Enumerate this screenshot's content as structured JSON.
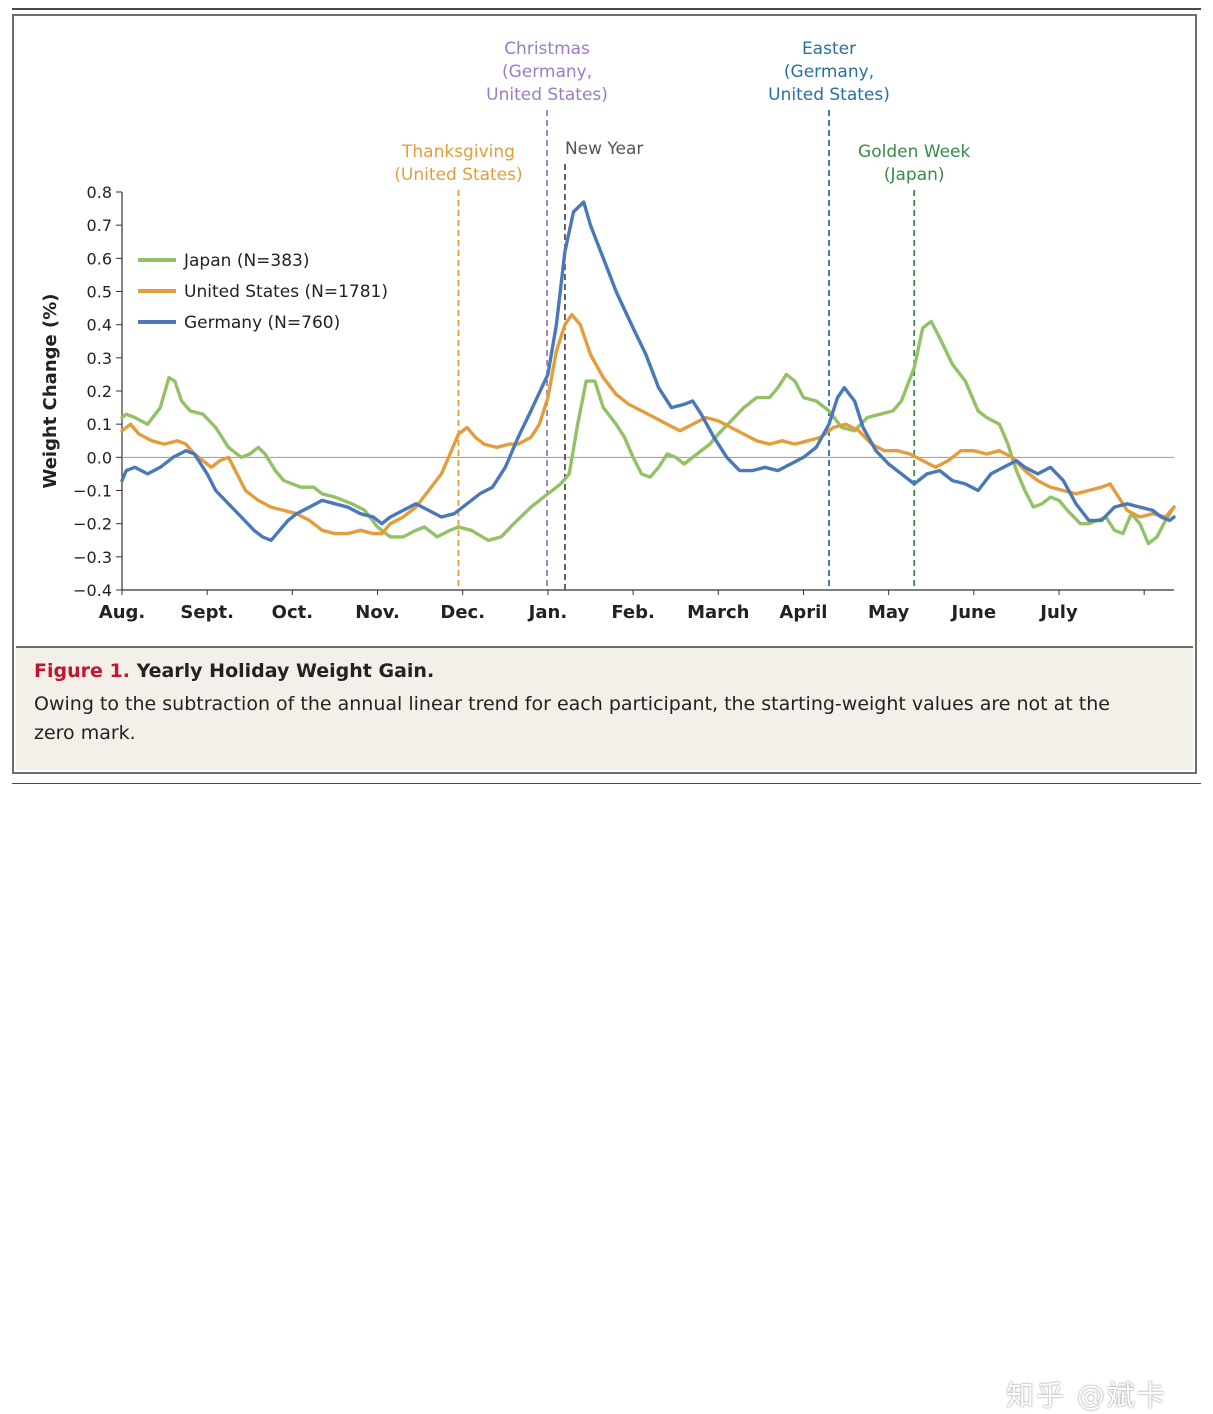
{
  "figure": {
    "label": "Figure 1.",
    "title": "Yearly Holiday Weight Gain.",
    "caption": "Owing to the subtraction of the annual linear trend for each participant, the starting-weight values are not at the zero mark."
  },
  "watermark": "知乎 @斌卡",
  "chart_data": {
    "type": "line",
    "title": "",
    "xlabel": "",
    "ylabel": "Weight Change (%)",
    "ylim": [
      -0.4,
      0.8
    ],
    "yticks": [
      "−0.4",
      "−0.3",
      "−0.2",
      "−0.1",
      "0.0",
      "0.1",
      "0.2",
      "0.3",
      "0.4",
      "0.5",
      "0.6",
      "0.7",
      "0.8"
    ],
    "xlim": [
      0,
      12
    ],
    "month_labels": [
      "Aug.",
      "Sept.",
      "Oct.",
      "Nov.",
      "Dec.",
      "Jan.",
      "Feb.",
      "March",
      "April",
      "May",
      "June",
      "July"
    ],
    "grid": false,
    "zero_line": true,
    "legend": "upper-left",
    "series": [
      {
        "name": "Japan (N=383)",
        "color": "#93c168",
        "points": [
          [
            0,
            0.12
          ],
          [
            0.05,
            0.13
          ],
          [
            0.15,
            0.12
          ],
          [
            0.3,
            0.1
          ],
          [
            0.45,
            0.15
          ],
          [
            0.55,
            0.24
          ],
          [
            0.62,
            0.23
          ],
          [
            0.7,
            0.17
          ],
          [
            0.8,
            0.14
          ],
          [
            0.95,
            0.13
          ],
          [
            1.1,
            0.09
          ],
          [
            1.25,
            0.03
          ],
          [
            1.4,
            0.0
          ],
          [
            1.5,
            0.01
          ],
          [
            1.6,
            0.03
          ],
          [
            1.68,
            0.01
          ],
          [
            1.8,
            -0.04
          ],
          [
            1.9,
            -0.07
          ],
          [
            2.0,
            -0.08
          ],
          [
            2.1,
            -0.09
          ],
          [
            2.25,
            -0.09
          ],
          [
            2.35,
            -0.11
          ],
          [
            2.5,
            -0.12
          ],
          [
            2.7,
            -0.14
          ],
          [
            2.85,
            -0.16
          ],
          [
            3.0,
            -0.21
          ],
          [
            3.15,
            -0.24
          ],
          [
            3.3,
            -0.24
          ],
          [
            3.45,
            -0.22
          ],
          [
            3.55,
            -0.21
          ],
          [
            3.7,
            -0.24
          ],
          [
            3.85,
            -0.22
          ],
          [
            3.95,
            -0.21
          ],
          [
            4.1,
            -0.22
          ],
          [
            4.3,
            -0.25
          ],
          [
            4.45,
            -0.24
          ],
          [
            4.6,
            -0.2
          ],
          [
            4.8,
            -0.15
          ],
          [
            5.0,
            -0.11
          ],
          [
            5.15,
            -0.08
          ],
          [
            5.25,
            -0.05
          ],
          [
            5.35,
            0.1
          ],
          [
            5.45,
            0.23
          ],
          [
            5.55,
            0.23
          ],
          [
            5.65,
            0.15
          ],
          [
            5.8,
            0.1
          ],
          [
            5.9,
            0.06
          ],
          [
            6.0,
            0.0
          ],
          [
            6.1,
            -0.05
          ],
          [
            6.2,
            -0.06
          ],
          [
            6.3,
            -0.03
          ],
          [
            6.4,
            0.01
          ],
          [
            6.5,
            0.0
          ],
          [
            6.6,
            -0.02
          ],
          [
            6.75,
            0.01
          ],
          [
            6.9,
            0.04
          ],
          [
            7.0,
            0.07
          ],
          [
            7.15,
            0.11
          ],
          [
            7.3,
            0.15
          ],
          [
            7.45,
            0.18
          ],
          [
            7.6,
            0.18
          ],
          [
            7.7,
            0.21
          ],
          [
            7.8,
            0.25
          ],
          [
            7.9,
            0.23
          ],
          [
            8.0,
            0.18
          ],
          [
            8.15,
            0.17
          ],
          [
            8.3,
            0.14
          ],
          [
            8.45,
            0.09
          ],
          [
            8.6,
            0.08
          ],
          [
            8.75,
            0.12
          ],
          [
            8.9,
            0.13
          ],
          [
            9.05,
            0.14
          ],
          [
            9.15,
            0.17
          ],
          [
            9.3,
            0.27
          ],
          [
            9.4,
            0.39
          ],
          [
            9.5,
            0.41
          ],
          [
            9.6,
            0.36
          ],
          [
            9.75,
            0.28
          ],
          [
            9.9,
            0.23
          ],
          [
            10.05,
            0.14
          ],
          [
            10.15,
            0.12
          ],
          [
            10.3,
            0.1
          ],
          [
            10.4,
            0.04
          ],
          [
            10.5,
            -0.04
          ],
          [
            10.6,
            -0.1
          ],
          [
            10.7,
            -0.15
          ],
          [
            10.8,
            -0.14
          ],
          [
            10.9,
            -0.12
          ],
          [
            11.0,
            -0.13
          ],
          [
            11.1,
            -0.16
          ],
          [
            11.25,
            -0.2
          ],
          [
            11.35,
            -0.2
          ],
          [
            11.45,
            -0.19
          ],
          [
            11.55,
            -0.18
          ],
          [
            11.65,
            -0.22
          ],
          [
            11.75,
            -0.23
          ],
          [
            11.85,
            -0.17
          ],
          [
            11.95,
            -0.2
          ],
          [
            12.05,
            -0.26
          ],
          [
            12.15,
            -0.24
          ],
          [
            12.25,
            -0.19
          ],
          [
            12.35,
            -0.15
          ]
        ]
      },
      {
        "name": "United States (N=1781)",
        "color": "#e39d3c",
        "points": [
          [
            0,
            0.08
          ],
          [
            0.1,
            0.1
          ],
          [
            0.2,
            0.07
          ],
          [
            0.35,
            0.05
          ],
          [
            0.5,
            0.04
          ],
          [
            0.65,
            0.05
          ],
          [
            0.75,
            0.04
          ],
          [
            0.85,
            0.01
          ],
          [
            1.0,
            -0.02
          ],
          [
            1.05,
            -0.03
          ],
          [
            1.15,
            -0.01
          ],
          [
            1.25,
            0.0
          ],
          [
            1.35,
            -0.05
          ],
          [
            1.45,
            -0.1
          ],
          [
            1.6,
            -0.13
          ],
          [
            1.75,
            -0.15
          ],
          [
            1.9,
            -0.16
          ],
          [
            2.05,
            -0.17
          ],
          [
            2.2,
            -0.19
          ],
          [
            2.35,
            -0.22
          ],
          [
            2.5,
            -0.23
          ],
          [
            2.65,
            -0.23
          ],
          [
            2.8,
            -0.22
          ],
          [
            2.95,
            -0.23
          ],
          [
            3.05,
            -0.23
          ],
          [
            3.15,
            -0.2
          ],
          [
            3.3,
            -0.18
          ],
          [
            3.45,
            -0.15
          ],
          [
            3.6,
            -0.1
          ],
          [
            3.75,
            -0.05
          ],
          [
            3.85,
            0.01
          ],
          [
            3.95,
            0.07
          ],
          [
            4.05,
            0.09
          ],
          [
            4.15,
            0.06
          ],
          [
            4.25,
            0.04
          ],
          [
            4.4,
            0.03
          ],
          [
            4.55,
            0.04
          ],
          [
            4.65,
            0.04
          ],
          [
            4.8,
            0.06
          ],
          [
            4.9,
            0.1
          ],
          [
            5.0,
            0.18
          ],
          [
            5.1,
            0.32
          ],
          [
            5.2,
            0.4
          ],
          [
            5.28,
            0.43
          ],
          [
            5.38,
            0.4
          ],
          [
            5.5,
            0.31
          ],
          [
            5.65,
            0.24
          ],
          [
            5.8,
            0.19
          ],
          [
            5.95,
            0.16
          ],
          [
            6.1,
            0.14
          ],
          [
            6.25,
            0.12
          ],
          [
            6.4,
            0.1
          ],
          [
            6.55,
            0.08
          ],
          [
            6.7,
            0.1
          ],
          [
            6.85,
            0.12
          ],
          [
            7.0,
            0.11
          ],
          [
            7.15,
            0.09
          ],
          [
            7.3,
            0.07
          ],
          [
            7.45,
            0.05
          ],
          [
            7.6,
            0.04
          ],
          [
            7.75,
            0.05
          ],
          [
            7.9,
            0.04
          ],
          [
            8.05,
            0.05
          ],
          [
            8.2,
            0.06
          ],
          [
            8.35,
            0.09
          ],
          [
            8.5,
            0.1
          ],
          [
            8.65,
            0.08
          ],
          [
            8.8,
            0.04
          ],
          [
            8.95,
            0.02
          ],
          [
            9.1,
            0.02
          ],
          [
            9.25,
            0.01
          ],
          [
            9.4,
            -0.01
          ],
          [
            9.55,
            -0.03
          ],
          [
            9.7,
            -0.01
          ],
          [
            9.85,
            0.02
          ],
          [
            10.0,
            0.02
          ],
          [
            10.15,
            0.01
          ],
          [
            10.3,
            0.02
          ],
          [
            10.45,
            0.0
          ],
          [
            10.6,
            -0.04
          ],
          [
            10.75,
            -0.07
          ],
          [
            10.9,
            -0.09
          ],
          [
            11.05,
            -0.1
          ],
          [
            11.2,
            -0.11
          ],
          [
            11.35,
            -0.1
          ],
          [
            11.5,
            -0.09
          ],
          [
            11.6,
            -0.08
          ],
          [
            11.7,
            -0.12
          ],
          [
            11.8,
            -0.16
          ],
          [
            11.95,
            -0.18
          ],
          [
            12.1,
            -0.17
          ],
          [
            12.25,
            -0.18
          ],
          [
            12.35,
            -0.15
          ]
        ]
      },
      {
        "name": "Germany (N=760)",
        "color": "#4a78b8",
        "points": [
          [
            0,
            -0.07
          ],
          [
            0.05,
            -0.04
          ],
          [
            0.15,
            -0.03
          ],
          [
            0.3,
            -0.05
          ],
          [
            0.45,
            -0.03
          ],
          [
            0.6,
            0.0
          ],
          [
            0.75,
            0.02
          ],
          [
            0.85,
            0.01
          ],
          [
            1.0,
            -0.05
          ],
          [
            1.1,
            -0.1
          ],
          [
            1.25,
            -0.14
          ],
          [
            1.4,
            -0.18
          ],
          [
            1.55,
            -0.22
          ],
          [
            1.65,
            -0.24
          ],
          [
            1.75,
            -0.25
          ],
          [
            1.85,
            -0.22
          ],
          [
            1.95,
            -0.19
          ],
          [
            2.05,
            -0.17
          ],
          [
            2.2,
            -0.15
          ],
          [
            2.35,
            -0.13
          ],
          [
            2.5,
            -0.14
          ],
          [
            2.65,
            -0.15
          ],
          [
            2.8,
            -0.17
          ],
          [
            2.95,
            -0.18
          ],
          [
            3.05,
            -0.2
          ],
          [
            3.15,
            -0.18
          ],
          [
            3.3,
            -0.16
          ],
          [
            3.45,
            -0.14
          ],
          [
            3.6,
            -0.16
          ],
          [
            3.75,
            -0.18
          ],
          [
            3.9,
            -0.17
          ],
          [
            4.05,
            -0.14
          ],
          [
            4.2,
            -0.11
          ],
          [
            4.35,
            -0.09
          ],
          [
            4.5,
            -0.03
          ],
          [
            4.65,
            0.06
          ],
          [
            4.8,
            0.14
          ],
          [
            5.0,
            0.25
          ],
          [
            5.1,
            0.4
          ],
          [
            5.2,
            0.62
          ],
          [
            5.3,
            0.74
          ],
          [
            5.42,
            0.77
          ],
          [
            5.5,
            0.7
          ],
          [
            5.65,
            0.6
          ],
          [
            5.8,
            0.5
          ],
          [
            6.0,
            0.39
          ],
          [
            6.15,
            0.31
          ],
          [
            6.3,
            0.21
          ],
          [
            6.45,
            0.15
          ],
          [
            6.6,
            0.16
          ],
          [
            6.7,
            0.17
          ],
          [
            6.8,
            0.13
          ],
          [
            6.95,
            0.06
          ],
          [
            7.1,
            0.0
          ],
          [
            7.25,
            -0.04
          ],
          [
            7.4,
            -0.04
          ],
          [
            7.55,
            -0.03
          ],
          [
            7.7,
            -0.04
          ],
          [
            7.85,
            -0.02
          ],
          [
            8.0,
            0.0
          ],
          [
            8.15,
            0.03
          ],
          [
            8.3,
            0.1
          ],
          [
            8.4,
            0.18
          ],
          [
            8.48,
            0.21
          ],
          [
            8.6,
            0.17
          ],
          [
            8.7,
            0.09
          ],
          [
            8.85,
            0.02
          ],
          [
            9.0,
            -0.02
          ],
          [
            9.15,
            -0.05
          ],
          [
            9.3,
            -0.08
          ],
          [
            9.45,
            -0.05
          ],
          [
            9.6,
            -0.04
          ],
          [
            9.75,
            -0.07
          ],
          [
            9.9,
            -0.08
          ],
          [
            10.05,
            -0.1
          ],
          [
            10.2,
            -0.05
          ],
          [
            10.35,
            -0.03
          ],
          [
            10.5,
            -0.01
          ],
          [
            10.6,
            -0.03
          ],
          [
            10.75,
            -0.05
          ],
          [
            10.9,
            -0.03
          ],
          [
            11.05,
            -0.07
          ],
          [
            11.2,
            -0.14
          ],
          [
            11.35,
            -0.19
          ],
          [
            11.5,
            -0.19
          ],
          [
            11.65,
            -0.15
          ],
          [
            11.8,
            -0.14
          ],
          [
            11.95,
            -0.15
          ],
          [
            12.1,
            -0.16
          ],
          [
            12.2,
            -0.18
          ],
          [
            12.3,
            -0.19
          ],
          [
            12.35,
            -0.18
          ]
        ]
      }
    ],
    "annotations": [
      {
        "lines": [
          "Thanksgiving",
          "(United States)"
        ],
        "x": 3.95,
        "color": "#e39d3c"
      },
      {
        "lines": [
          "Christmas",
          "(Germany,",
          "United States)"
        ],
        "x": 4.99,
        "color": "#9b7cc4"
      },
      {
        "lines": [
          "New Year"
        ],
        "x": 5.2,
        "color": "#555555"
      },
      {
        "lines": [
          "Easter",
          "(Germany,",
          "United States)"
        ],
        "x": 8.3,
        "color": "#2a6f9e"
      },
      {
        "lines": [
          "Golden Week",
          "(Japan)"
        ],
        "x": 9.3,
        "color": "#3a8a4e"
      }
    ]
  }
}
